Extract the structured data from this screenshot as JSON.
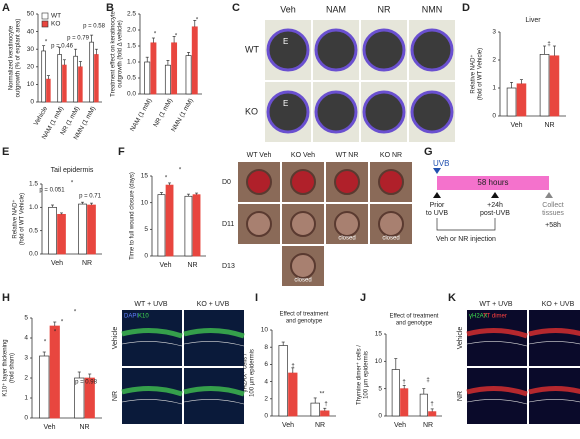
{
  "chart_data": [
    {
      "panel": "A",
      "type": "bar",
      "ylabel": [
        "Normalized keratinocyte",
        "outgrowth (% of explant area)"
      ],
      "categories": [
        "Vehicle",
        "NAM (1 mM)",
        "NR (1 mM)",
        "NMN (1 mM)"
      ],
      "series": [
        {
          "name": "WT",
          "color": "#ffffff",
          "values": [
            29,
            27,
            26,
            34
          ],
          "errors": [
            3,
            4,
            4,
            4
          ]
        },
        {
          "name": "KO",
          "color": "#e8463f",
          "values": [
            13,
            21,
            20,
            27
          ],
          "errors": [
            2,
            3,
            3,
            3
          ]
        }
      ],
      "ylim": [
        0,
        50
      ],
      "yticks": [
        0,
        10,
        20,
        30,
        40,
        50
      ],
      "legend": "upper left",
      "annotations": [
        "*",
        "p = 0.46",
        "p = 0.79",
        "p = 0.58"
      ]
    },
    {
      "panel": "B",
      "type": "bar",
      "ylabel": [
        "Treatment effect on keratinocyte",
        "outgrowth (fold Δ vehicle)"
      ],
      "categories": [
        "NAM (1 mM)",
        "NR (1 mM)",
        "NMN (1 mM)"
      ],
      "series": [
        {
          "color": "#ffffff",
          "values": [
            1.0,
            0.9,
            1.2
          ],
          "errors": [
            0.15,
            0.15,
            0.1
          ]
        },
        {
          "color": "#e8463f",
          "values": [
            1.6,
            1.6,
            2.1
          ],
          "errors": [
            0.15,
            0.2,
            0.2
          ]
        }
      ],
      "ylim": [
        0,
        2.5
      ],
      "yticks": [
        {
          "value": 0,
          "label": "0.0"
        },
        0.5,
        {
          "value": 1,
          "label": "1.0"
        },
        1.5,
        {
          "value": 2,
          "label": "2.0"
        },
        2.5
      ],
      "annotations": [
        "*",
        "*",
        "*"
      ]
    },
    {
      "panel": "D",
      "type": "bar",
      "title": "Liver",
      "ylabel": [
        "Relative NAD⁺",
        "(fold of WT Vehicle)"
      ],
      "categories": [
        "Veh",
        "NR"
      ],
      "series": [
        {
          "color": "#ffffff",
          "values": [
            1.0,
            2.2
          ],
          "errors": [
            0.2,
            0.3
          ]
        },
        {
          "color": "#e8463f",
          "values": [
            1.15,
            2.15
          ],
          "errors": [
            0.15,
            0.35
          ]
        }
      ],
      "ylim": [
        0,
        3
      ],
      "yticks": [
        0,
        1,
        2,
        3
      ],
      "annotations": [
        "‡"
      ]
    },
    {
      "panel": "E",
      "type": "bar",
      "title": "Tail epidermis",
      "ylabel": [
        "Relative NAD⁺",
        "(fold of WT Vehicle)"
      ],
      "categories": [
        "Veh",
        "NR"
      ],
      "series": [
        {
          "color": "#ffffff",
          "values": [
            1.0,
            1.07
          ],
          "errors": [
            0.05,
            0.04
          ]
        },
        {
          "color": "#e8463f",
          "values": [
            0.85,
            1.05
          ],
          "errors": [
            0.03,
            0.04
          ]
        }
      ],
      "ylim": [
        0,
        1.5
      ],
      "yticks": [
        {
          "value": 0,
          "label": "0.0"
        },
        0.5,
        {
          "value": 1,
          "label": "1.0"
        },
        1.5
      ],
      "annotations": [
        "p = 0.051",
        "*",
        "p = 0.71"
      ]
    },
    {
      "panel": "F",
      "type": "bar",
      "ylabel": [
        "Time to full wound closure (days)"
      ],
      "categories": [
        "Veh",
        "NR"
      ],
      "series": [
        {
          "color": "#ffffff",
          "values": [
            11.5,
            11.2
          ],
          "errors": [
            0.4,
            0.4
          ]
        },
        {
          "color": "#e8463f",
          "values": [
            13.3,
            11.5
          ],
          "errors": [
            0.4,
            0.3
          ]
        }
      ],
      "ylim": [
        0,
        15
      ],
      "yticks": [
        0,
        5,
        10,
        15
      ],
      "annotations": [
        "*",
        "*"
      ]
    },
    {
      "panel": "H",
      "type": "bar",
      "ylabel": [
        "K10⁺ layer thickening",
        "(fold sham)"
      ],
      "categories": [
        "Veh",
        "NR"
      ],
      "series": [
        {
          "color": "#ffffff",
          "values": [
            3.1,
            2.0
          ],
          "errors": [
            0.2,
            0.3
          ]
        },
        {
          "color": "#e8463f",
          "values": [
            4.6,
            2.0
          ],
          "errors": [
            0.2,
            0.2
          ]
        }
      ],
      "ylim": [
        0,
        5
      ],
      "yticks": [
        0,
        1,
        2,
        3,
        4,
        5
      ],
      "annotations": [
        "*",
        "*",
        "*",
        "*",
        "p = 0.98"
      ]
    },
    {
      "panel": "I",
      "type": "bar",
      "title": [
        "Effect of treatment",
        "and genotype"
      ],
      "ylabel": [
        "γH2AX⁺ cells /",
        "100 µm epidermis"
      ],
      "categories": [
        "Veh",
        "NR"
      ],
      "series": [
        {
          "color": "#ffffff",
          "values": [
            8.2,
            1.5
          ],
          "errors": [
            0.4,
            0.6
          ]
        },
        {
          "color": "#e8463f",
          "values": [
            5.0,
            0.6
          ],
          "errors": [
            0.6,
            0.3
          ]
        }
      ],
      "ylim": [
        0,
        10
      ],
      "yticks": [
        0,
        2,
        4,
        6,
        8,
        10
      ],
      "annotations": [
        "†",
        "**",
        "†"
      ]
    },
    {
      "panel": "J",
      "type": "bar",
      "title": [
        "Effect of treatment",
        "and genotype"
      ],
      "ylabel": [
        "Thymine dimer⁺ cells /",
        "100 µm epidermis"
      ],
      "categories": [
        "Veh",
        "NR"
      ],
      "series": [
        {
          "color": "#ffffff",
          "values": [
            8.5,
            4.0
          ],
          "errors": [
            2.0,
            1.0
          ]
        },
        {
          "color": "#e8463f",
          "values": [
            5.0,
            0.8
          ],
          "errors": [
            0.6,
            0.5
          ]
        }
      ],
      "ylim": [
        0,
        15
      ],
      "yticks": [
        0,
        5,
        10,
        15
      ],
      "annotations": [
        "†",
        "‡",
        "†"
      ]
    }
  ],
  "panel_c": {
    "letter": "C",
    "columns": [
      "Veh",
      "NAM",
      "NR",
      "NMN"
    ],
    "rows": [
      "WT",
      "KO"
    ],
    "explant_label": "E"
  },
  "wound_photos": {
    "columns": [
      "WT Veh",
      "KO Veh",
      "WT NR",
      "KO NR"
    ],
    "rows": [
      "D0",
      "D11",
      "D13"
    ],
    "closed_label": "closed"
  },
  "panel_g": {
    "letter": "G",
    "uvb": "UVB",
    "duration": "58 hours",
    "prior": [
      "Prior",
      "to UVB"
    ],
    "post": [
      "+24h",
      "post-UVB"
    ],
    "collect": [
      "Collect",
      "tissues"
    ],
    "end": "+58h",
    "injection": "Veh or NR injection"
  },
  "panel_h_images": {
    "columns": [
      "WT + UVB",
      "KO + UVB"
    ],
    "stains": [
      "DAPI",
      "K10"
    ],
    "rows": [
      "Vehicle",
      "NR"
    ]
  },
  "panel_k": {
    "letter": "K",
    "columns": [
      "WT + UVB",
      "KO + UVB"
    ],
    "stains": [
      "γH2AX",
      "TT dimer"
    ],
    "rows": [
      "Vehicle",
      "NR"
    ]
  }
}
